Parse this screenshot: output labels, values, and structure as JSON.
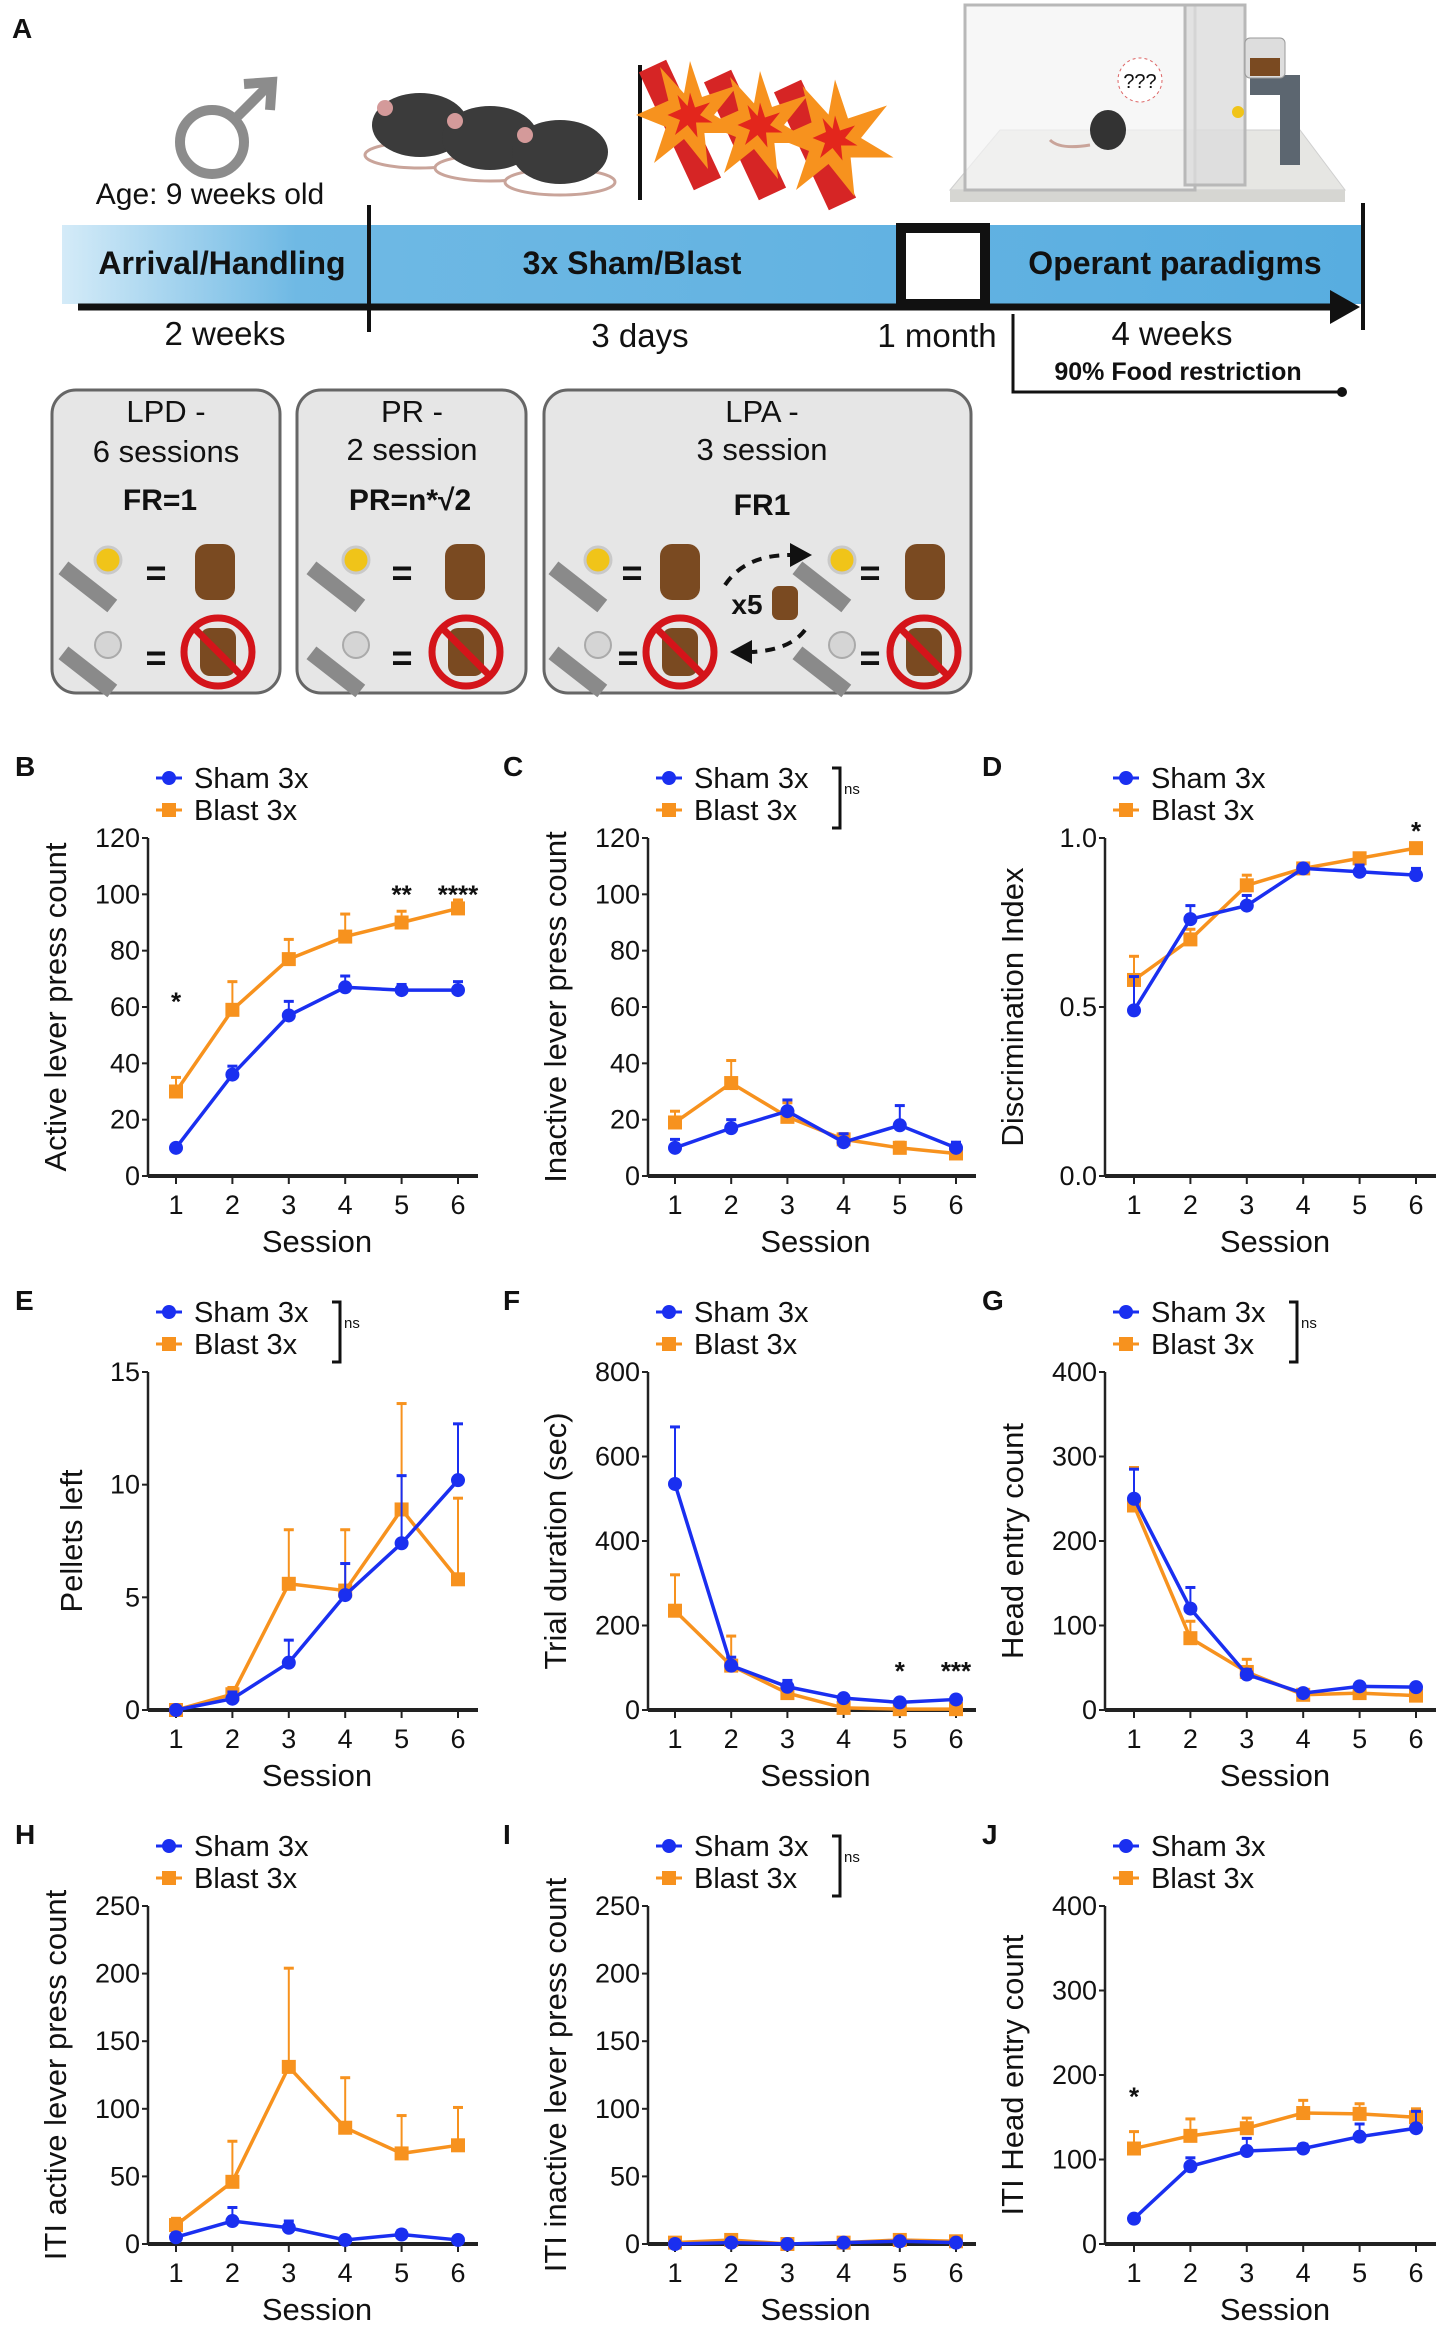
{
  "panel_a": {
    "letter": "A",
    "age_label": "Age: 9 weeks old",
    "timeline": {
      "segments": [
        "Arrival/Handling",
        "3x Sham/Blast",
        "Operant paradigms"
      ],
      "durations": [
        "2 weeks",
        "3 days",
        "1 month",
        "4 weeks"
      ],
      "food_restriction": "90% Food restriction",
      "bar_colors": [
        "#cfe8f7",
        "#5aaee0"
      ]
    },
    "boxes": [
      {
        "title": "LPD -",
        "sessions": "6 sessions",
        "schedule": "FR=1"
      },
      {
        "title": "PR -",
        "sessions": "2 session",
        "schedule": "PR=n*√2"
      },
      {
        "title": "LPA -",
        "sessions": "3 session",
        "schedule": "FR1",
        "repeat": "x5"
      }
    ],
    "operant_thought": "???",
    "equals": "="
  },
  "colors": {
    "sham": "#1a2ff0",
    "blast": "#f7921e"
  },
  "chart_data": [
    {
      "letter": "B",
      "type": "line",
      "xlabel": "Session",
      "ylabel": "Active lever press count",
      "ylim": [
        0,
        120
      ],
      "yticks": [
        "0",
        "20",
        "40",
        "60",
        "80",
        "100",
        "120"
      ],
      "categories": [
        "1",
        "2",
        "3",
        "4",
        "5",
        "6"
      ],
      "series": [
        {
          "name": "Sham 3x",
          "values": [
            10,
            36,
            57,
            67,
            66,
            66
          ],
          "sem": [
            1,
            3,
            5,
            4,
            2,
            3
          ]
        },
        {
          "name": "Blast 3x",
          "values": [
            30,
            59,
            77,
            85,
            90,
            95
          ],
          "sem": [
            5,
            10,
            7,
            8,
            4,
            3
          ]
        }
      ],
      "annotations": [
        {
          "session": 1,
          "y": 63,
          "text": "*"
        },
        {
          "session": 5,
          "y": 101,
          "text": "**"
        },
        {
          "session": 6,
          "y": 101,
          "text": "****"
        }
      ],
      "legend_significance": ""
    },
    {
      "letter": "C",
      "type": "line",
      "xlabel": "Session",
      "ylabel": "Inactive lever press count",
      "ylim": [
        0,
        120
      ],
      "yticks": [
        "0",
        "20",
        "40",
        "60",
        "80",
        "100",
        "120"
      ],
      "categories": [
        "1",
        "2",
        "3",
        "4",
        "5",
        "6"
      ],
      "series": [
        {
          "name": "Sham 3x",
          "values": [
            10,
            17,
            23,
            12,
            18,
            10
          ],
          "sem": [
            3,
            3,
            4,
            3,
            7,
            2
          ]
        },
        {
          "name": "Blast 3x",
          "values": [
            19,
            33,
            21,
            13,
            10,
            8
          ],
          "sem": [
            4,
            8,
            5,
            2,
            2,
            2
          ]
        }
      ],
      "annotations": [],
      "legend_significance": "ns"
    },
    {
      "letter": "D",
      "type": "line",
      "xlabel": "Session",
      "ylabel": "Discrimination Index",
      "ylim": [
        0,
        1
      ],
      "yticks": [
        "0.0",
        "0.5",
        "1.0"
      ],
      "categories": [
        "1",
        "2",
        "3",
        "4",
        "5",
        "6"
      ],
      "series": [
        {
          "name": "Sham 3x",
          "values": [
            0.49,
            0.76,
            0.8,
            0.91,
            0.9,
            0.89
          ],
          "sem": [
            0.1,
            0.04,
            0.03,
            0.01,
            0.02,
            0.02
          ]
        },
        {
          "name": "Blast 3x",
          "values": [
            0.58,
            0.7,
            0.86,
            0.91,
            0.94,
            0.97
          ],
          "sem": [
            0.07,
            0.03,
            0.03,
            0.01,
            0.01,
            0.01
          ]
        }
      ],
      "annotations": [
        {
          "session": 6,
          "y": 1.03,
          "text": "*"
        }
      ],
      "legend_significance": ""
    },
    {
      "letter": "E",
      "type": "line",
      "xlabel": "Session",
      "ylabel": "Pellets left",
      "ylim": [
        0,
        15
      ],
      "yticks": [
        "0",
        "5",
        "10",
        "15"
      ],
      "categories": [
        "1",
        "2",
        "3",
        "4",
        "5",
        "6"
      ],
      "series": [
        {
          "name": "Sham 3x",
          "values": [
            0,
            0.5,
            2.1,
            5.1,
            7.4,
            10.2
          ],
          "sem": [
            0.1,
            0.3,
            1.0,
            1.4,
            3.0,
            2.5
          ]
        },
        {
          "name": "Blast 3x",
          "values": [
            0,
            0.7,
            5.6,
            5.3,
            8.9,
            5.8
          ],
          "sem": [
            0.1,
            0.3,
            2.4,
            2.7,
            4.7,
            3.6
          ]
        }
      ],
      "annotations": [],
      "legend_significance": "ns"
    },
    {
      "letter": "F",
      "type": "line",
      "xlabel": "Session",
      "ylabel": "Trial duration (sec)",
      "ylim": [
        0,
        800
      ],
      "yticks": [
        "0",
        "200",
        "400",
        "600",
        "800"
      ],
      "categories": [
        "1",
        "2",
        "3",
        "4",
        "5",
        "6"
      ],
      "series": [
        {
          "name": "Sham 3x",
          "values": [
            535,
            105,
            55,
            28,
            18,
            25
          ],
          "sem": [
            135,
            20,
            15,
            5,
            5,
            5
          ]
        },
        {
          "name": "Blast 3x",
          "values": [
            235,
            105,
            40,
            5,
            2,
            2
          ],
          "sem": [
            85,
            70,
            10,
            2,
            2,
            2
          ]
        }
      ],
      "annotations": [
        {
          "session": 5,
          "y": 100,
          "text": "*"
        },
        {
          "session": 6,
          "y": 100,
          "text": "***"
        }
      ],
      "legend_significance": ""
    },
    {
      "letter": "G",
      "type": "line",
      "xlabel": "Session",
      "ylabel": "Head entry count",
      "ylim": [
        0,
        400
      ],
      "yticks": [
        "0",
        "100",
        "200",
        "300",
        "400"
      ],
      "categories": [
        "1",
        "2",
        "3",
        "4",
        "5",
        "6"
      ],
      "series": [
        {
          "name": "Sham 3x",
          "values": [
            250,
            120,
            42,
            20,
            28,
            27
          ],
          "sem": [
            35,
            25,
            6,
            3,
            4,
            4
          ]
        },
        {
          "name": "Blast 3x",
          "values": [
            242,
            85,
            45,
            18,
            20,
            17
          ],
          "sem": [
            45,
            20,
            15,
            3,
            4,
            3
          ]
        }
      ],
      "annotations": [],
      "legend_significance": "ns"
    },
    {
      "letter": "H",
      "type": "line",
      "xlabel": "Session",
      "ylabel": "ITI active lever press count",
      "ylim": [
        0,
        250
      ],
      "yticks": [
        "0",
        "50",
        "100",
        "150",
        "200",
        "250"
      ],
      "categories": [
        "1",
        "2",
        "3",
        "4",
        "5",
        "6"
      ],
      "series": [
        {
          "name": "Sham 3x",
          "values": [
            5,
            17,
            12,
            3,
            7,
            3
          ],
          "sem": [
            3,
            10,
            5,
            2,
            3,
            2
          ]
        },
        {
          "name": "Blast 3x",
          "values": [
            14,
            46,
            131,
            86,
            67,
            73
          ],
          "sem": [
            5,
            30,
            73,
            37,
            28,
            28
          ]
        }
      ],
      "annotations": [],
      "legend_significance": ""
    },
    {
      "letter": "I",
      "type": "line",
      "xlabel": "Session",
      "ylabel": "ITI inactive lever press count",
      "ylim": [
        0,
        250
      ],
      "yticks": [
        "0",
        "50",
        "100",
        "150",
        "200",
        "250"
      ],
      "categories": [
        "1",
        "2",
        "3",
        "4",
        "5",
        "6"
      ],
      "series": [
        {
          "name": "Sham 3x",
          "values": [
            0,
            1,
            0,
            1,
            2,
            1
          ],
          "sem": [
            1,
            1,
            1,
            1,
            1,
            1
          ]
        },
        {
          "name": "Blast 3x",
          "values": [
            1,
            3,
            0,
            1,
            3,
            2
          ],
          "sem": [
            1,
            1,
            1,
            1,
            1,
            1
          ]
        }
      ],
      "annotations": [],
      "legend_significance": "ns"
    },
    {
      "letter": "J",
      "type": "line",
      "xlabel": "Session",
      "ylabel": "ITI Head entry count",
      "ylim": [
        0,
        400
      ],
      "yticks": [
        "0",
        "100",
        "200",
        "300",
        "400"
      ],
      "categories": [
        "1",
        "2",
        "3",
        "4",
        "5",
        "6"
      ],
      "series": [
        {
          "name": "Sham 3x",
          "values": [
            30,
            92,
            110,
            113,
            127,
            137
          ],
          "sem": [
            3,
            10,
            15,
            5,
            15,
            20
          ]
        },
        {
          "name": "Blast 3x",
          "values": [
            113,
            128,
            137,
            155,
            154,
            150
          ],
          "sem": [
            20,
            20,
            12,
            15,
            12,
            10
          ]
        }
      ],
      "annotations": [
        {
          "session": 1,
          "y": 178,
          "text": "*"
        }
      ],
      "legend_significance": ""
    }
  ]
}
